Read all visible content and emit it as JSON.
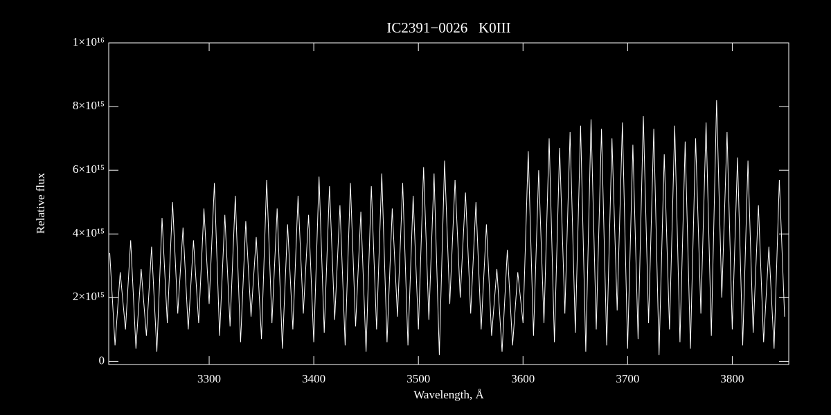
{
  "chart_data": {
    "type": "line",
    "title": "IC2391−0026   K0III",
    "xlabel": "Wavelength, Å",
    "ylabel": "Relative flux",
    "xlim": [
      3204,
      3854
    ],
    "ylim": [
      -100000000000000.0,
      1e+16
    ],
    "xticks": [
      3300,
      3400,
      3500,
      3600,
      3700,
      3800
    ],
    "yticks": [
      0,
      {
        "value": 2000000000000000.0,
        "label": "2×10¹⁵"
      },
      {
        "value": 4000000000000000.0,
        "label": "4×10¹⁵"
      },
      {
        "value": 6000000000000000.0,
        "label": "6×10¹⁵"
      },
      {
        "value": 8000000000000000.0,
        "label": "8×10¹⁵"
      },
      {
        "value": 1e+16,
        "label": "1×10¹⁶"
      }
    ],
    "color": "#ffffff",
    "x": [
      3205,
      3210,
      3215,
      3220,
      3225,
      3230,
      3235,
      3240,
      3245,
      3250,
      3255,
      3260,
      3265,
      3270,
      3275,
      3280,
      3285,
      3290,
      3295,
      3300,
      3305,
      3310,
      3315,
      3320,
      3325,
      3330,
      3335,
      3340,
      3345,
      3350,
      3355,
      3360,
      3365,
      3370,
      3375,
      3380,
      3385,
      3390,
      3395,
      3400,
      3405,
      3410,
      3415,
      3420,
      3425,
      3430,
      3435,
      3440,
      3445,
      3450,
      3455,
      3460,
      3465,
      3470,
      3475,
      3480,
      3485,
      3490,
      3495,
      3500,
      3505,
      3510,
      3515,
      3520,
      3525,
      3530,
      3535,
      3540,
      3545,
      3550,
      3555,
      3560,
      3565,
      3570,
      3575,
      3580,
      3585,
      3590,
      3595,
      3600,
      3605,
      3610,
      3615,
      3620,
      3625,
      3630,
      3635,
      3640,
      3645,
      3650,
      3655,
      3660,
      3665,
      3670,
      3675,
      3680,
      3685,
      3690,
      3695,
      3700,
      3705,
      3710,
      3715,
      3720,
      3725,
      3730,
      3735,
      3740,
      3745,
      3750,
      3755,
      3760,
      3765,
      3770,
      3775,
      3780,
      3785,
      3790,
      3795,
      3800,
      3805,
      3810,
      3815,
      3820,
      3825,
      3830,
      3835,
      3840,
      3845,
      3850
    ],
    "values": [
      3400000000000000.0,
      500000000000000.0,
      2800000000000000.0,
      1000000000000000.0,
      3800000000000000.0,
      400000000000000.0,
      2900000000000000.0,
      800000000000000.0,
      3600000000000000.0,
      300000000000000.0,
      4500000000000000.0,
      1200000000000000.0,
      5000000000000000.0,
      1500000000000000.0,
      4200000000000000.0,
      1000000000000000.0,
      3800000000000000.0,
      1200000000000000.0,
      4800000000000000.0,
      1800000000000000.0,
      5600000000000000.0,
      800000000000000.0,
      4600000000000000.0,
      1100000000000000.0,
      5200000000000000.0,
      600000000000000.0,
      4400000000000000.0,
      1400000000000000.0,
      3900000000000000.0,
      700000000000000.0,
      5700000000000000.0,
      1200000000000000.0,
      4800000000000000.0,
      400000000000000.0,
      4300000000000000.0,
      1000000000000000.0,
      5200000000000000.0,
      1500000000000000.0,
      4600000000000000.0,
      600000000000000.0,
      5800000000000000.0,
      900000000000000.0,
      5500000000000000.0,
      1300000000000000.0,
      4900000000000000.0,
      500000000000000.0,
      5600000000000000.0,
      1100000000000000.0,
      4700000000000000.0,
      300000000000000.0,
      5500000000000000.0,
      1000000000000000.0,
      5900000000000000.0,
      600000000000000.0,
      4800000000000000.0,
      1400000000000000.0,
      5600000000000000.0,
      500000000000000.0,
      5200000000000000.0,
      1000000000000000.0,
      6100000000000000.0,
      1300000000000000.0,
      5900000000000000.0,
      200000000000000.0,
      6300000000000000.0,
      1800000000000000.0,
      5700000000000000.0,
      2000000000000000.0,
      5300000000000000.0,
      1500000000000000.0,
      5000000000000000.0,
      1000000000000000.0,
      4300000000000000.0,
      800000000000000.0,
      2900000000000000.0,
      300000000000000.0,
      3500000000000000.0,
      500000000000000.0,
      2800000000000000.0,
      1200000000000000.0,
      6600000000000000.0,
      800000000000000.0,
      6000000000000000.0,
      1200000000000000.0,
      7000000000000000.0,
      600000000000000.0,
      6700000000000000.0,
      1500000000000000.0,
      7200000000000000.0,
      900000000000000.0,
      7400000000000000.0,
      300000000000000.0,
      7600000000000000.0,
      1000000000000000.0,
      7300000000000000.0,
      500000000000000.0,
      7000000000000000.0,
      1600000000000000.0,
      7500000000000000.0,
      400000000000000.0,
      6800000000000000.0,
      700000000000000.0,
      7700000000000000.0,
      1200000000000000.0,
      7300000000000000.0,
      200000000000000.0,
      6500000000000000.0,
      1000000000000000.0,
      7400000000000000.0,
      600000000000000.0,
      6900000000000000.0,
      400000000000000.0,
      7000000000000000.0,
      1500000000000000.0,
      7500000000000000.0,
      800000000000000.0,
      8200000000000000.0,
      2000000000000000.0,
      7200000000000000.0,
      1000000000000000.0,
      6400000000000000.0,
      500000000000000.0,
      6300000000000000.0,
      900000000000000.0,
      4900000000000000.0,
      600000000000000.0,
      3600000000000000.0,
      400000000000000.0,
      5700000000000000.0,
      1400000000000000.0
    ]
  }
}
